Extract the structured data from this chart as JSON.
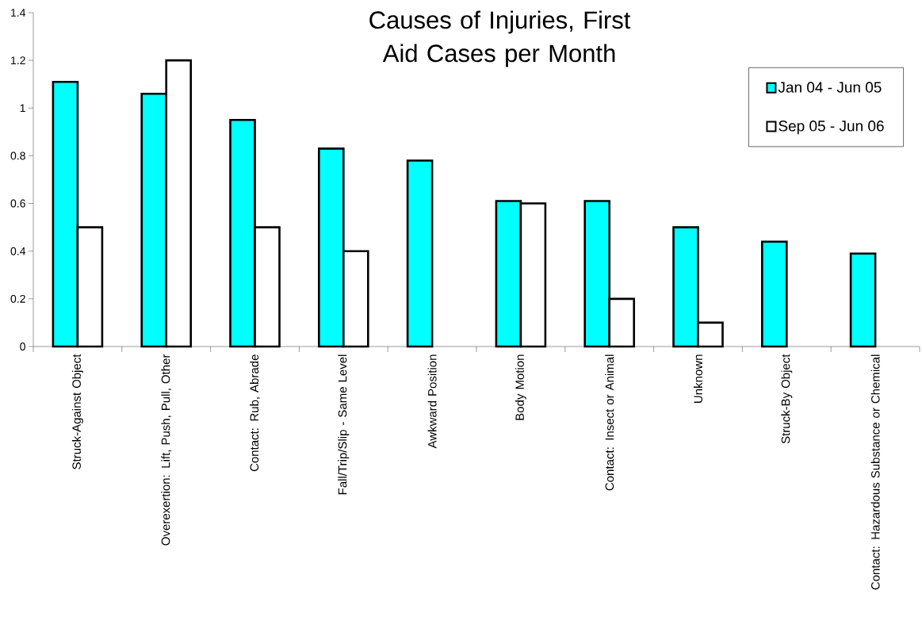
{
  "chart_data": {
    "type": "bar",
    "title": "Causes of Injuries, First Aid Cases per Month",
    "categories": [
      "Struck-Against Object",
      "Overexertion: Lift, Push, Pull, Other",
      "Contact:  Rub, Abrade",
      "Fall/Trip/Slip - Same Level",
      "Awkward Position",
      "Body Motion",
      "Contact:  Insect or Animal",
      "Unknown",
      "Struck-By Object",
      "Contact:  Hazardous Substance or Chemical"
    ],
    "series": [
      {
        "name": "Jan 04 - Jun 05",
        "color": "#00ffff",
        "values": [
          1.11,
          1.06,
          0.95,
          0.83,
          0.78,
          0.61,
          0.61,
          0.5,
          0.44,
          0.39
        ]
      },
      {
        "name": "Sep 05 - Jun 06",
        "color": "#ffffff",
        "values": [
          0.5,
          1.2,
          0.5,
          0.4,
          null,
          0.6,
          0.2,
          0.1,
          null,
          null
        ]
      }
    ],
    "ylim": [
      0,
      1.4
    ],
    "yticks": [
      0,
      0.2,
      0.4,
      0.6,
      0.8,
      1,
      1.2,
      1.4
    ],
    "legend": "top right"
  }
}
